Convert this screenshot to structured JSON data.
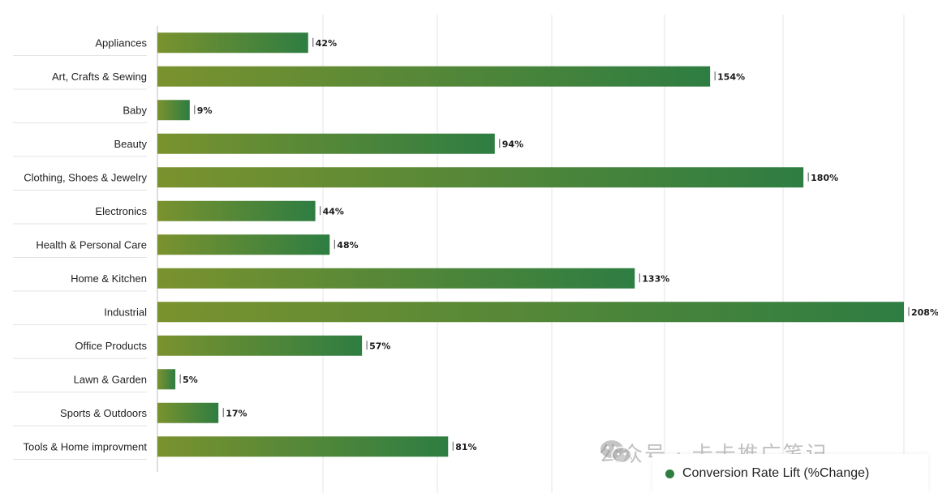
{
  "chart_data": {
    "type": "bar",
    "orientation": "horizontal",
    "categories": [
      "Appliances",
      "Art, Crafts & Sewing",
      "Baby",
      "Beauty",
      "Clothing, Shoes & Jewelry",
      "Electronics",
      "Health & Personal Care",
      "Home & Kitchen",
      "Industrial",
      "Office Products",
      "Lawn & Garden",
      "Sports & Outdoors",
      "Tools & Home improvment"
    ],
    "series": [
      {
        "name": "Conversion Rate Lift (%Change)",
        "values": [
          42,
          154,
          9,
          94,
          180,
          44,
          48,
          133,
          208,
          57,
          5,
          17,
          81
        ],
        "data_labels": [
          "42%",
          "154%",
          "9%",
          "94%",
          "180%",
          "44%",
          "48%",
          "133%",
          "208%",
          "57%",
          "5%",
          "17%",
          "81%"
        ]
      }
    ],
    "xlim": [
      0,
      208
    ],
    "grid": true,
    "legend_position": "bottom-right",
    "colors": {
      "bar_start": "#7a922e",
      "bar_end": "#2e7d42",
      "legend_dot": "#2e7d42",
      "grid": "#e6e6e6"
    }
  },
  "legend": {
    "label": "Conversion Rate Lift (%Change)"
  },
  "watermark": {
    "text": "公众号 · 卡卡推广笔记",
    "icon": "wechat-icon"
  }
}
